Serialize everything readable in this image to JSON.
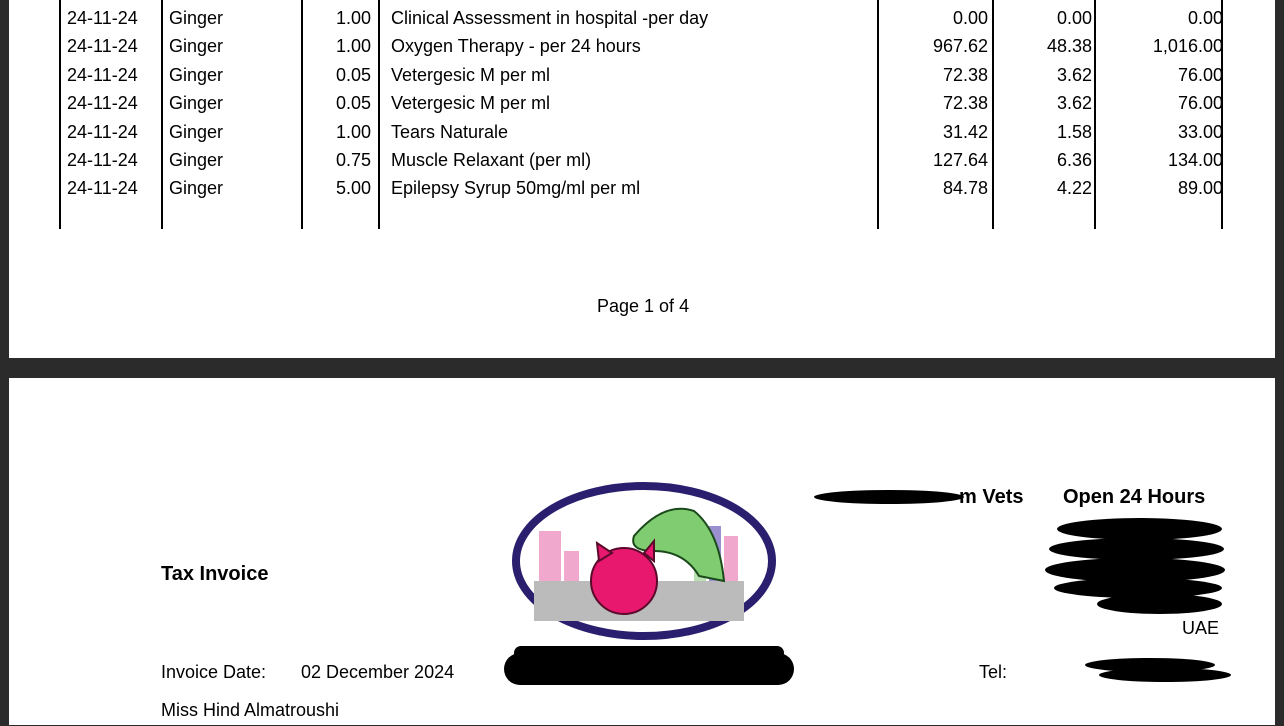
{
  "page1": {
    "rows": [
      {
        "date": "24-11-24",
        "patient": "Ginger",
        "qty": "1.00",
        "description": "Clinical Assessment in hospital -per day",
        "net": "0.00",
        "vat": "0.00",
        "total": "0.00"
      },
      {
        "date": "24-11-24",
        "patient": "Ginger",
        "qty": "1.00",
        "description": "Oxygen Therapy - per 24 hours",
        "net": "967.62",
        "vat": "48.38",
        "total": "1,016.00"
      },
      {
        "date": "24-11-24",
        "patient": "Ginger",
        "qty": "0.05",
        "description": "Vetergesic M per ml",
        "net": "72.38",
        "vat": "3.62",
        "total": "76.00"
      },
      {
        "date": "24-11-24",
        "patient": "Ginger",
        "qty": "0.05",
        "description": "Vetergesic M per ml",
        "net": "72.38",
        "vat": "3.62",
        "total": "76.00"
      },
      {
        "date": "24-11-24",
        "patient": "Ginger",
        "qty": "1.00",
        "description": "Tears Naturale",
        "net": "31.42",
        "vat": "1.58",
        "total": "33.00"
      },
      {
        "date": "24-11-24",
        "patient": "Ginger",
        "qty": "0.75",
        "description": "Muscle Relaxant (per ml)",
        "net": "127.64",
        "vat": "6.36",
        "total": "134.00"
      },
      {
        "date": "24-11-24",
        "patient": "Ginger",
        "qty": "5.00",
        "description": "Epilepsy Syrup 50mg/ml per ml",
        "net": "84.78",
        "vat": "4.22",
        "total": "89.00"
      }
    ],
    "page_label": "Page 1 of 4"
  },
  "page2": {
    "title": "Tax Invoice",
    "clinic_name_visible": "m Vets",
    "open_hours": "Open 24 Hours",
    "country": "UAE",
    "tel_label": "Tel:",
    "invoice_date_label": "Invoice Date:",
    "invoice_date": "02 December 2024",
    "customer_name": "Miss Hind Almatroushi"
  }
}
